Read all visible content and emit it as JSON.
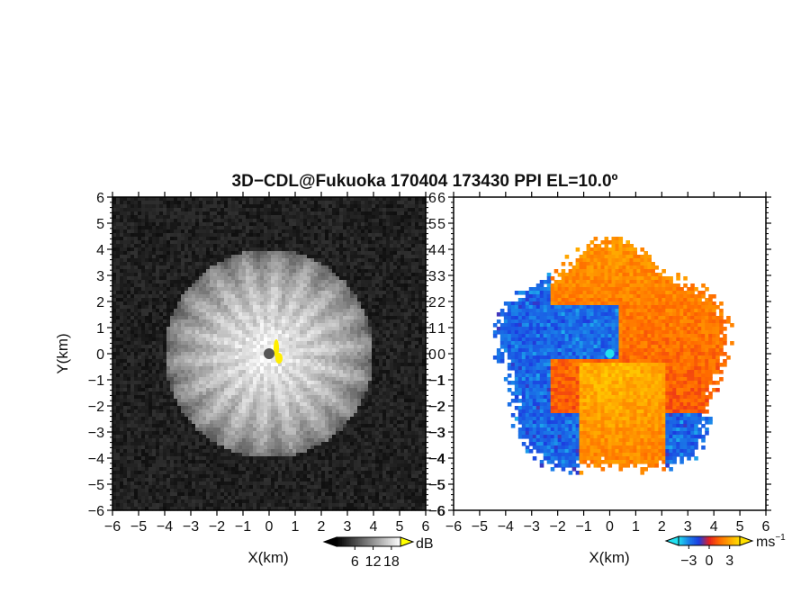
{
  "title": "3D−CDL@Fukuoka 170404 173430 PPI EL=10.0º",
  "chart_data": [
    {
      "type": "heatmap",
      "name": "reflectivity",
      "xlabel": "X(km)",
      "ylabel": "Y(km)",
      "xlim": [
        -6,
        6
      ],
      "ylim": [
        -6,
        6
      ],
      "xticks": [
        "−6",
        "−5",
        "−4",
        "−3",
        "−2",
        "−1",
        "0",
        "1",
        "2",
        "3",
        "4",
        "5",
        "6"
      ],
      "yticks": [
        "−6",
        "−5",
        "−4",
        "−3",
        "−2",
        "−1",
        "0",
        "1",
        "2",
        "3",
        "4",
        "5",
        "6"
      ],
      "echo_radius_km": 4.0,
      "colorbar": {
        "unit": "dB",
        "ticks": [
          "6",
          "12",
          "18"
        ],
        "tick_values": [
          6,
          12,
          18
        ],
        "range": [
          0,
          21
        ],
        "colors": [
          "#000000",
          "#ffffff"
        ],
        "over_color": "#ffff00"
      }
    },
    {
      "type": "heatmap",
      "name": "doppler-velocity",
      "xlabel": "X(km)",
      "ylabel": "",
      "xlim": [
        -6,
        6
      ],
      "ylim": [
        -6,
        6
      ],
      "xticks": [
        "−6",
        "−5",
        "−4",
        "−3",
        "−2",
        "−1",
        "0",
        "1",
        "2",
        "3",
        "4",
        "5",
        "6"
      ],
      "yticks": [
        "−6",
        "−5",
        "−4",
        "−3",
        "−2",
        "−1",
        "0",
        "1",
        "2",
        "3",
        "4",
        "5",
        "6"
      ],
      "echo_radius_km": 4.3,
      "colorbar": {
        "unit": "ms",
        "unit_exp": "−1",
        "ticks": [
          "−3",
          "0",
          "3"
        ],
        "tick_values": [
          -3,
          0,
          3
        ],
        "range": [
          -4.5,
          4.5
        ],
        "colors": [
          "#22e0f0",
          "#1a7fe8",
          "#1c3ce0",
          "#e62020",
          "#ff6a00",
          "#ffa500",
          "#ffe000"
        ]
      }
    }
  ]
}
